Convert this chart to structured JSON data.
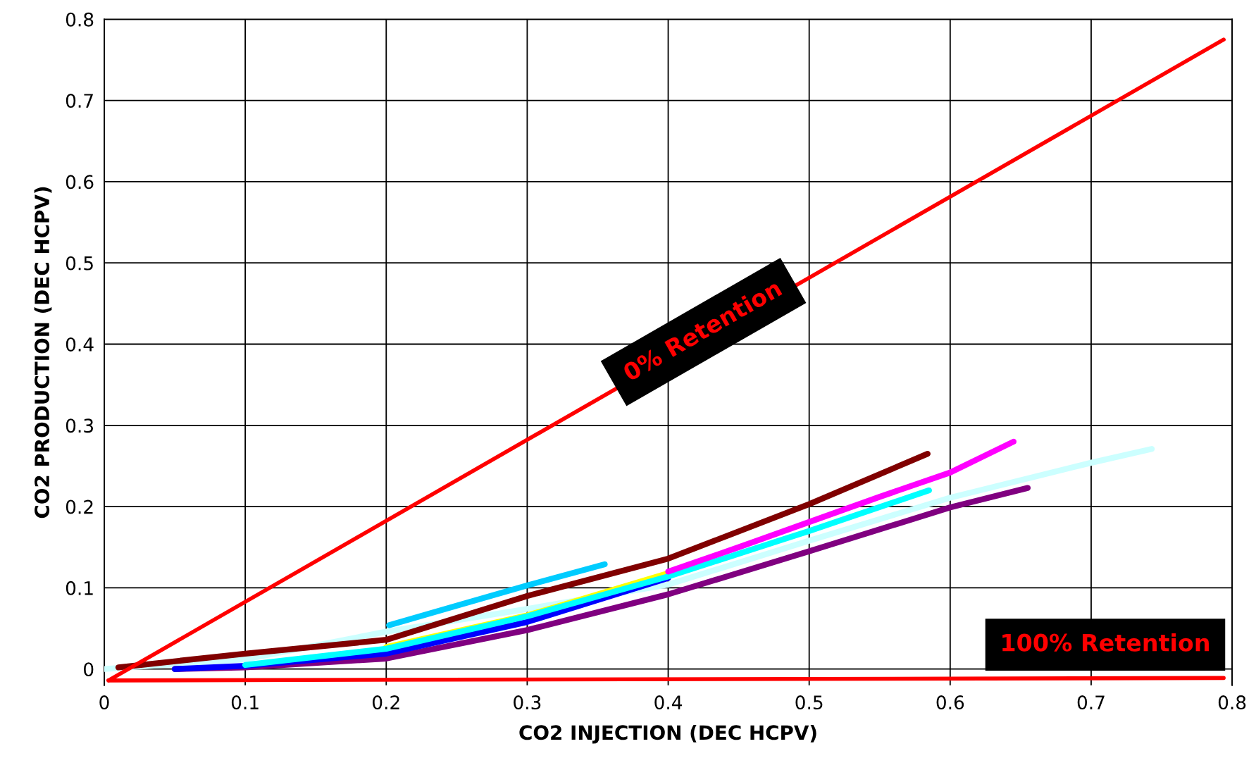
{
  "chart_data": {
    "type": "line",
    "xlabel": "CO2 INJECTION (DEC HCPV)",
    "ylabel": "CO2 PRODUCTION (DEC HCPV)",
    "xlim": [
      0,
      0.8
    ],
    "ylim": [
      -0.02,
      0.8
    ],
    "xticks": [
      0,
      0.1,
      0.2,
      0.3,
      0.4,
      0.5,
      0.6,
      0.7,
      0.8
    ],
    "yticks": [
      0,
      0.1,
      0.2,
      0.3,
      0.4,
      0.5,
      0.6,
      0.7,
      0.8
    ],
    "grid": true,
    "legend": false,
    "marker": "none",
    "line_style": "solid",
    "annotations": [
      "0% Retention",
      "100% Retention"
    ],
    "series": [
      {
        "color": "#ff0000",
        "x": [
          0.003,
          0.794
        ],
        "values": [
          -0.014,
          0.775
        ]
      },
      {
        "color": "#ff0000",
        "x": [
          0.003,
          0.794
        ],
        "values": [
          -0.014,
          -0.011
        ]
      },
      {
        "color": "#ccffff",
        "x": [
          0,
          0.1,
          0.2,
          0.3,
          0.4,
          0.5,
          0.6,
          0.7,
          0.743
        ],
        "values": [
          0,
          0.012,
          0.046,
          0.074,
          0.104,
          0.158,
          0.211,
          0.254,
          0.271
        ]
      },
      {
        "color": "#800080",
        "x": [
          0.05,
          0.1,
          0.2,
          0.3,
          0.4,
          0.5,
          0.6,
          0.655
        ],
        "values": [
          0,
          0.002,
          0.013,
          0.048,
          0.092,
          0.145,
          0.199,
          0.223
        ]
      },
      {
        "color": "#0000ff",
        "x": [
          0.05,
          0.1,
          0.2,
          0.3,
          0.4
        ],
        "values": [
          0,
          0.004,
          0.019,
          0.058,
          0.112
        ]
      },
      {
        "color": "#ffff00",
        "x": [
          0.2,
          0.3,
          0.4
        ],
        "values": [
          0.027,
          0.066,
          0.118
        ]
      },
      {
        "color": "#00ffff",
        "x": [
          0.1,
          0.2,
          0.3,
          0.4,
          0.5,
          0.585
        ],
        "values": [
          0.005,
          0.025,
          0.065,
          0.114,
          0.17,
          0.22
        ]
      },
      {
        "color": "#ff00ff",
        "x": [
          0.4,
          0.45,
          0.5,
          0.55,
          0.6,
          0.645
        ],
        "values": [
          0.12,
          0.15,
          0.181,
          0.212,
          0.242,
          0.28
        ]
      },
      {
        "color": "#800000",
        "x": [
          0.01,
          0.1,
          0.2,
          0.3,
          0.4,
          0.5,
          0.584
        ],
        "values": [
          0.002,
          0.019,
          0.036,
          0.09,
          0.136,
          0.203,
          0.265
        ]
      },
      {
        "color": "#00ccff",
        "x": [
          0.202,
          0.25,
          0.3,
          0.355
        ],
        "values": [
          0.054,
          0.078,
          0.103,
          0.129
        ]
      }
    ]
  }
}
